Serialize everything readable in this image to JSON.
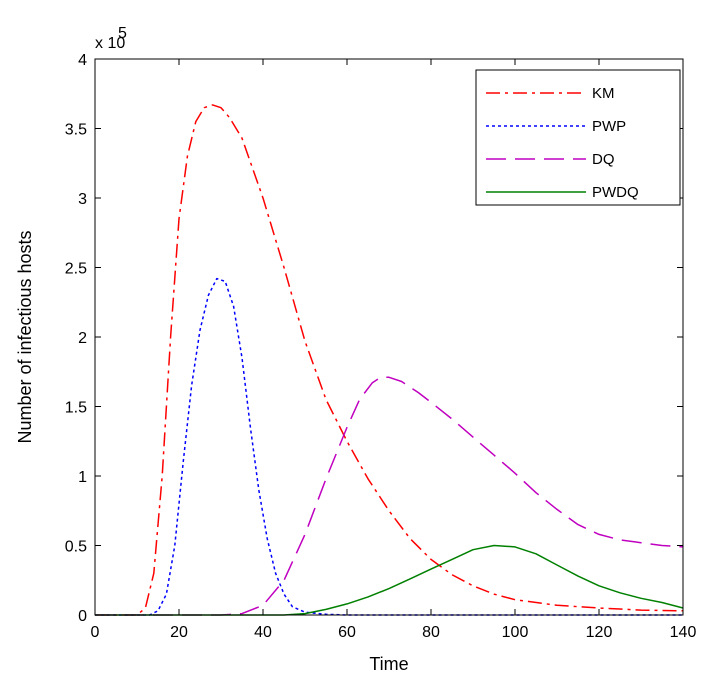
{
  "chart_data": {
    "type": "line",
    "title": "",
    "xlabel": "Time",
    "ylabel": "Number of infectious hosts",
    "xlim": [
      0,
      140
    ],
    "ylim": [
      0,
      4
    ],
    "y_multiplier_base": "x 10",
    "y_multiplier_exp": "5",
    "x_ticks": [
      0,
      20,
      40,
      60,
      80,
      100,
      120,
      140
    ],
    "y_ticks": [
      0,
      0.5,
      1,
      1.5,
      2,
      2.5,
      3,
      3.5,
      4
    ],
    "x_tick_labels": [
      "0",
      "20",
      "40",
      "60",
      "80",
      "100",
      "120",
      "140"
    ],
    "y_tick_labels": [
      "0",
      "0.5",
      "1",
      "1.5",
      "2",
      "2.5",
      "3",
      "3.5",
      "4"
    ],
    "grid": false,
    "legend_position": "top-right",
    "series": [
      {
        "name": "KM",
        "color": "#ff0000",
        "dash": "dashdot",
        "points": [
          [
            0,
            0
          ],
          [
            10,
            0
          ],
          [
            12,
            0.05
          ],
          [
            14,
            0.3
          ],
          [
            16,
            1.0
          ],
          [
            18,
            2.0
          ],
          [
            20,
            2.85
          ],
          [
            22,
            3.3
          ],
          [
            24,
            3.55
          ],
          [
            26,
            3.65
          ],
          [
            28,
            3.67
          ],
          [
            30,
            3.65
          ],
          [
            32,
            3.58
          ],
          [
            35,
            3.43
          ],
          [
            40,
            3.0
          ],
          [
            45,
            2.5
          ],
          [
            50,
            1.97
          ],
          [
            55,
            1.55
          ],
          [
            60,
            1.25
          ],
          [
            65,
            0.98
          ],
          [
            70,
            0.75
          ],
          [
            75,
            0.55
          ],
          [
            80,
            0.4
          ],
          [
            85,
            0.29
          ],
          [
            90,
            0.21
          ],
          [
            95,
            0.15
          ],
          [
            100,
            0.11
          ],
          [
            110,
            0.07
          ],
          [
            120,
            0.05
          ],
          [
            130,
            0.035
          ],
          [
            140,
            0.03
          ]
        ]
      },
      {
        "name": "PWP",
        "color": "#0000ff",
        "dash": "dotted",
        "points": [
          [
            0,
            0
          ],
          [
            13,
            0
          ],
          [
            15,
            0.03
          ],
          [
            17,
            0.15
          ],
          [
            19,
            0.5
          ],
          [
            21,
            1.1
          ],
          [
            23,
            1.65
          ],
          [
            25,
            2.05
          ],
          [
            27,
            2.3
          ],
          [
            29,
            2.42
          ],
          [
            31,
            2.4
          ],
          [
            33,
            2.22
          ],
          [
            35,
            1.85
          ],
          [
            37,
            1.35
          ],
          [
            39,
            0.9
          ],
          [
            41,
            0.55
          ],
          [
            43,
            0.3
          ],
          [
            45,
            0.15
          ],
          [
            47,
            0.06
          ],
          [
            50,
            0.02
          ],
          [
            55,
            0.005
          ],
          [
            60,
            0
          ],
          [
            140,
            0
          ]
        ]
      },
      {
        "name": "DQ",
        "color": "#c000c0",
        "dash": "longdash",
        "points": [
          [
            0,
            0
          ],
          [
            30,
            0
          ],
          [
            35,
            0.01
          ],
          [
            40,
            0.07
          ],
          [
            45,
            0.25
          ],
          [
            50,
            0.58
          ],
          [
            55,
            0.98
          ],
          [
            60,
            1.35
          ],
          [
            63,
            1.55
          ],
          [
            66,
            1.67
          ],
          [
            68,
            1.71
          ],
          [
            70,
            1.71
          ],
          [
            73,
            1.68
          ],
          [
            77,
            1.6
          ],
          [
            80,
            1.53
          ],
          [
            85,
            1.41
          ],
          [
            90,
            1.28
          ],
          [
            95,
            1.15
          ],
          [
            100,
            1.02
          ],
          [
            105,
            0.88
          ],
          [
            110,
            0.76
          ],
          [
            115,
            0.65
          ],
          [
            120,
            0.58
          ],
          [
            125,
            0.54
          ],
          [
            130,
            0.52
          ],
          [
            135,
            0.5
          ],
          [
            140,
            0.49
          ]
        ]
      },
      {
        "name": "PWDQ",
        "color": "#008000",
        "dash": "solid",
        "points": [
          [
            0,
            0
          ],
          [
            45,
            0
          ],
          [
            50,
            0.01
          ],
          [
            55,
            0.04
          ],
          [
            60,
            0.08
          ],
          [
            65,
            0.13
          ],
          [
            70,
            0.19
          ],
          [
            75,
            0.26
          ],
          [
            80,
            0.33
          ],
          [
            85,
            0.4
          ],
          [
            90,
            0.47
          ],
          [
            95,
            0.5
          ],
          [
            100,
            0.49
          ],
          [
            105,
            0.44
          ],
          [
            110,
            0.36
          ],
          [
            115,
            0.28
          ],
          [
            120,
            0.21
          ],
          [
            125,
            0.16
          ],
          [
            130,
            0.12
          ],
          [
            135,
            0.09
          ],
          [
            140,
            0.05
          ]
        ]
      }
    ]
  }
}
